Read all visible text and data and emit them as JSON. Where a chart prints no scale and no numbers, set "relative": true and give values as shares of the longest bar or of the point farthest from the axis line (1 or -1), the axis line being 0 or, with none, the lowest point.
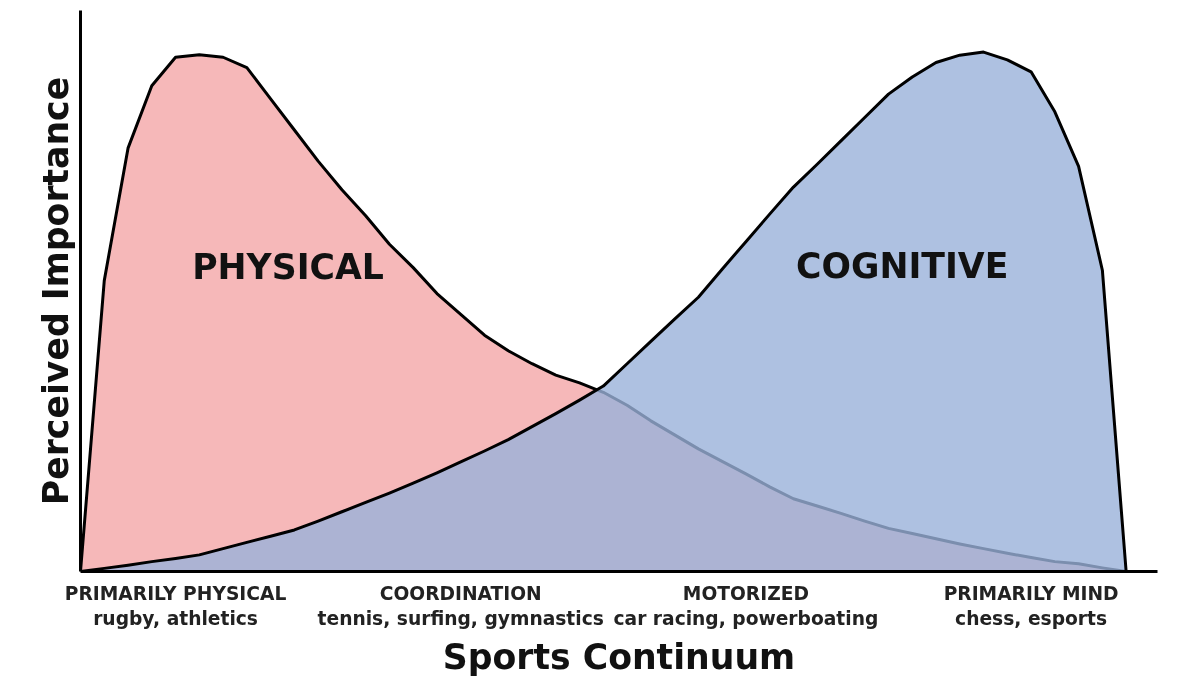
{
  "chart_data": {
    "type": "area",
    "relative": true,
    "xlabel": "Sports Continuum",
    "ylabel": "Perceived Importance",
    "categories": [
      null,
      null,
      null,
      null,
      "PRIMARILY PHYSICAL\nrugby, athletics",
      null,
      null,
      null,
      null,
      null,
      null,
      null,
      null,
      null,
      null,
      null,
      "COORDINATION\ntennis, surfing, gymnastics",
      null,
      null,
      null,
      null,
      null,
      null,
      null,
      null,
      null,
      null,
      null,
      "MOTORIZED\ncar racing, powerboating",
      null,
      null,
      null,
      null,
      null,
      null,
      null,
      null,
      null,
      null,
      null,
      "PRIMARILY MIND\nchess, esports",
      null,
      null,
      null,
      null
    ],
    "grid": false,
    "legend": false,
    "tick_labels": "x",
    "line_style": "solid",
    "marker": "none",
    "series": [
      {
        "name": "PHYSICAL",
        "color": "#f4a6a8",
        "values": [
          0,
          0.56,
          0.815,
          0.935,
          0.99,
          0.995,
          0.99,
          0.97,
          0.91,
          0.85,
          0.79,
          0.735,
          0.685,
          0.63,
          0.585,
          0.535,
          0.495,
          0.455,
          0.425,
          0.4,
          0.378,
          0.363,
          0.345,
          0.32,
          0.29,
          0.263,
          0.236,
          0.212,
          0.188,
          0.163,
          0.14,
          0.126,
          0.112,
          0.097,
          0.083,
          0.073,
          0.063,
          0.053,
          0.044,
          0.035,
          0.027,
          0.019,
          0.015,
          0.007,
          0
        ]
      },
      {
        "name": "COGNITIVE",
        "color": "#9ab2d9",
        "values": [
          0,
          0.006,
          0.012,
          0.019,
          0.025,
          0.032,
          0.044,
          0.056,
          0.068,
          0.08,
          0.097,
          0.115,
          0.133,
          0.151,
          0.17,
          0.19,
          0.211,
          0.232,
          0.254,
          0.279,
          0.304,
          0.33,
          0.357,
          0.4,
          0.443,
          0.486,
          0.528,
          0.582,
          0.635,
          0.688,
          0.74,
          0.784,
          0.829,
          0.874,
          0.919,
          0.952,
          0.98,
          0.994,
          1.0,
          0.985,
          0.962,
          0.885,
          0.78,
          0.58,
          0
        ]
      }
    ]
  }
}
